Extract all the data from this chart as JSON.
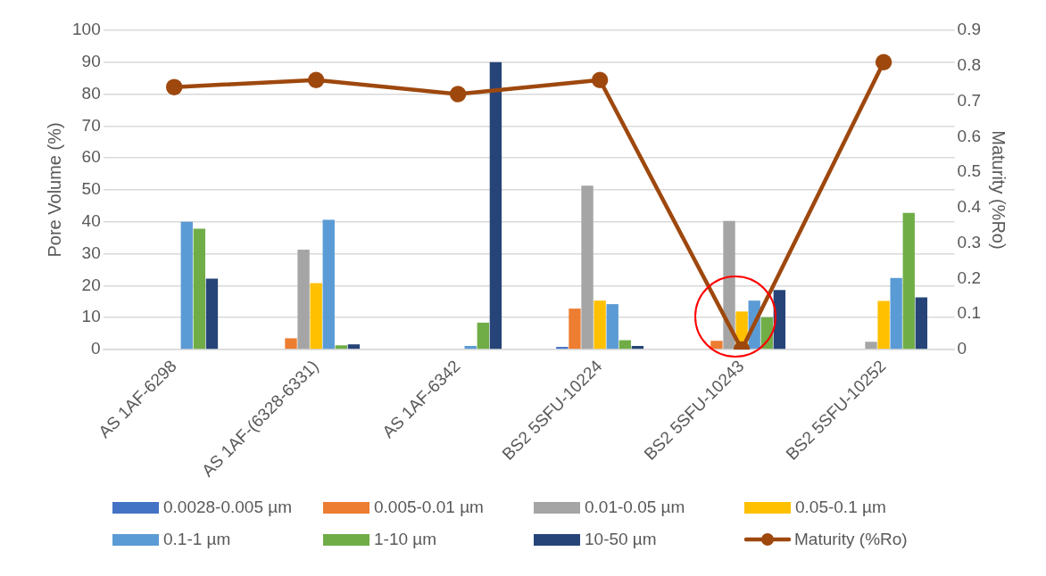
{
  "chart_data": {
    "type": "bar",
    "ylabel": "Pore Volume (%)",
    "y2label": "Maturity (%Ro)",
    "categories": [
      "AS 1AF-6298",
      "AS 1AF-(6328-6331)",
      "AS 1AF-6342",
      "BS2 5SFU-10224",
      "BS2 5SFU-10243",
      "BS2 5SFU-10252"
    ],
    "series": [
      {
        "name": "0.0028-0.005 µm",
        "color": "#4472c4",
        "values": [
          null,
          null,
          null,
          0.8,
          null,
          null
        ]
      },
      {
        "name": "0.005-0.01 µm",
        "color": "#ed7d31",
        "values": [
          null,
          3.5,
          null,
          12.8,
          2.7,
          null
        ]
      },
      {
        "name": "0.01-0.05 µm",
        "color": "#a5a5a5",
        "values": [
          null,
          31.3,
          null,
          51.3,
          40.3,
          2.4
        ]
      },
      {
        "name": "0.05-0.1 µm",
        "color": "#ffc000",
        "values": [
          null,
          20.8,
          null,
          15.3,
          11.9,
          15.2
        ]
      },
      {
        "name": "0.1-1 µm",
        "color": "#5b9bd5",
        "values": [
          40,
          40.6,
          1.1,
          14.2,
          15.3,
          22.4
        ]
      },
      {
        "name": "1-10 µm",
        "color": "#70ad47",
        "values": [
          37.8,
          1.3,
          8.4,
          2.9,
          10.1,
          42.8
        ]
      },
      {
        "name": "10-50 µm",
        "color": "#264478",
        "values": [
          22.2,
          1.6,
          90,
          1.1,
          18.6,
          16.3
        ]
      },
      {
        "name": "Maturity (%Ro)",
        "type": "line",
        "axis": "y2",
        "color": "#9e480e",
        "values": [
          0.74,
          0.76,
          0.72,
          0.76,
          0.0,
          0.81
        ]
      }
    ],
    "ylim": [
      0,
      100
    ],
    "yticks": [
      0,
      10,
      20,
      30,
      40,
      50,
      60,
      70,
      80,
      90,
      100
    ],
    "y2lim": [
      0,
      0.9
    ],
    "y2ticks": [
      0,
      0.1,
      0.2,
      0.3,
      0.4,
      0.5,
      0.6,
      0.7,
      0.8,
      0.9
    ],
    "grid": "y",
    "legend": "bottom",
    "marker": "circle",
    "line_style": "solid"
  }
}
